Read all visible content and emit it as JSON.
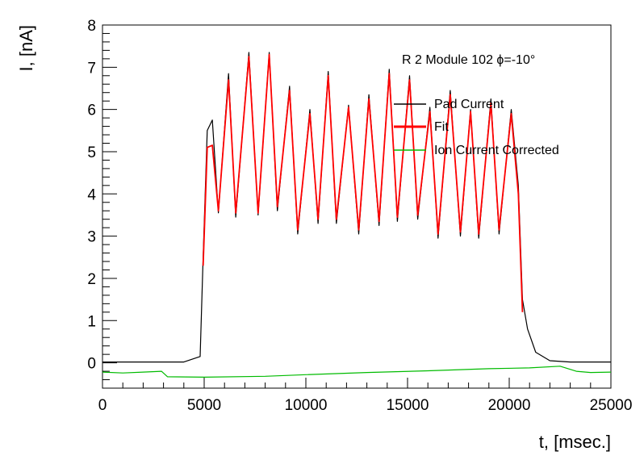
{
  "chart_data": {
    "type": "line",
    "title": "",
    "annotation": "R 2 Module 102 ϕ=-10°",
    "xlabel": "t, [msec.]",
    "ylabel": "I, [nA]",
    "xlim": [
      0,
      25000
    ],
    "ylim": [
      -0.6,
      8
    ],
    "x_ticks": [
      0,
      5000,
      10000,
      15000,
      20000,
      25000
    ],
    "x_tick_labels": [
      "0",
      "5000",
      "10000",
      "15000",
      "20000",
      "25000"
    ],
    "y_ticks": [
      0,
      1,
      2,
      3,
      4,
      5,
      6,
      7,
      8
    ],
    "y_tick_labels": [
      "0",
      "1",
      "2",
      "3",
      "4",
      "5",
      "6",
      "7",
      "8"
    ],
    "grid": false,
    "legend_position": "top-right",
    "series": [
      {
        "name": "Pad Current",
        "color": "#000000",
        "x": [
          0,
          4000,
          4800,
          4950,
          5150,
          5400,
          5700,
          6200,
          6550,
          7200,
          7650,
          8200,
          8600,
          9200,
          9600,
          10200,
          10600,
          11100,
          11500,
          12100,
          12600,
          13100,
          13600,
          14100,
          14500,
          15100,
          15500,
          16100,
          16500,
          17100,
          17600,
          18100,
          18500,
          19100,
          19500,
          20100,
          20450,
          20650,
          20900,
          21300,
          22000,
          23000,
          25000
        ],
        "y": [
          0.02,
          0.02,
          0.15,
          2.5,
          5.5,
          5.75,
          3.55,
          6.85,
          3.45,
          7.35,
          3.5,
          7.35,
          3.6,
          6.55,
          3.05,
          6.0,
          3.3,
          6.9,
          3.3,
          6.1,
          3.05,
          6.35,
          3.25,
          6.95,
          3.35,
          6.8,
          3.4,
          6.05,
          2.95,
          6.45,
          3.0,
          6.0,
          2.95,
          6.25,
          3.05,
          6.0,
          4.2,
          1.5,
          0.8,
          0.25,
          0.05,
          0.02,
          0.02
        ]
      },
      {
        "name": "Fit",
        "color": "#ff0000",
        "x": [
          4950,
          5150,
          5400,
          5700,
          6200,
          6550,
          7200,
          7650,
          8200,
          8600,
          9200,
          9600,
          10200,
          10600,
          11100,
          11500,
          12100,
          12600,
          13100,
          13600,
          14100,
          14500,
          15100,
          15500,
          16100,
          16500,
          17100,
          17600,
          18100,
          18500,
          19100,
          19500,
          20100,
          20450,
          20650
        ],
        "y": [
          2.3,
          5.1,
          5.15,
          3.6,
          6.7,
          3.55,
          7.25,
          3.55,
          7.3,
          3.7,
          6.45,
          3.15,
          5.9,
          3.4,
          6.8,
          3.4,
          6.05,
          3.15,
          6.25,
          3.35,
          6.85,
          3.45,
          6.7,
          3.5,
          5.95,
          3.05,
          6.35,
          3.1,
          5.95,
          3.05,
          6.15,
          3.15,
          5.9,
          4.0,
          1.2
        ]
      },
      {
        "name": "Ion Current Corrected",
        "color": "#00bb00",
        "x": [
          0,
          1000,
          2000,
          2900,
          3200,
          5000,
          8000,
          10000,
          13000,
          16000,
          19000,
          21000,
          22500,
          23300,
          24000,
          25000
        ],
        "y": [
          -0.22,
          -0.24,
          -0.22,
          -0.2,
          -0.33,
          -0.34,
          -0.32,
          -0.28,
          -0.23,
          -0.19,
          -0.14,
          -0.12,
          -0.08,
          -0.2,
          -0.23,
          -0.22
        ]
      }
    ]
  }
}
